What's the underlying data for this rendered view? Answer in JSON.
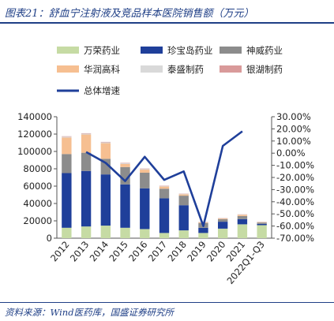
{
  "figure": {
    "title": "图表21：舒血宁注射液及竞品样本医院销售额（万元）",
    "source": "资料来源：Wind医药库，国盛证券研究所"
  },
  "colors": {
    "万荣药业": "#c6dba4",
    "珍宝岛药业": "#1f3f9a",
    "神威药业": "#8c8c8c",
    "华润高科": "#f6bf91",
    "泰盛制药": "#d9d9d9",
    "银湖制药": "#d99a9a",
    "总体增速": "#1f3f9a",
    "header_rule": "#1f3f86"
  },
  "chart_data": {
    "type": "bar",
    "stacked": true,
    "categories": [
      "2012",
      "2013",
      "2014",
      "2015",
      "2016",
      "2017",
      "2018",
      "2019",
      "2020",
      "2021",
      "2022Q1-Q3"
    ],
    "series": [
      {
        "name": "万荣药业",
        "values": [
          12000,
          13500,
          14500,
          12000,
          10500,
          6000,
          9000,
          6000,
          11000,
          16000,
          15000
        ]
      },
      {
        "name": "珍宝岛药业",
        "values": [
          63000,
          64000,
          59000,
          50000,
          47000,
          40000,
          29000,
          6000,
          8000,
          6000,
          1500
        ]
      },
      {
        "name": "神威药业",
        "values": [
          22000,
          21000,
          18000,
          20000,
          18000,
          11000,
          11000,
          5500,
          3000,
          3500,
          1500
        ]
      },
      {
        "name": "华润高科",
        "values": [
          19000,
          21000,
          18000,
          3500,
          3500,
          2500,
          1500,
          800,
          800,
          1500,
          500
        ]
      },
      {
        "name": "泰盛制药",
        "values": [
          1000,
          1000,
          1000,
          800,
          800,
          600,
          600,
          400,
          300,
          300,
          300
        ]
      },
      {
        "name": "银湖制药",
        "values": [
          500,
          500,
          500,
          500,
          500,
          400,
          300,
          200,
          200,
          200,
          200
        ]
      }
    ],
    "line_series": {
      "name": "总体增速",
      "x": [
        "2013",
        "2014",
        "2015",
        "2016",
        "2017",
        "2018",
        "2019",
        "2020",
        "2021"
      ],
      "values": [
        1.0,
        -8.0,
        -23.0,
        -3.0,
        -22.0,
        -15.0,
        -60.0,
        6.0,
        18.0
      ],
      "axis": "right",
      "unit": "%"
    },
    "y_left": {
      "min": 0,
      "max": 140000,
      "ticks": [
        0,
        20000,
        40000,
        60000,
        80000,
        100000,
        120000,
        140000
      ]
    },
    "y_right": {
      "min": -70,
      "max": 30,
      "ticks": [
        30,
        20,
        10,
        0,
        -10,
        -20,
        -30,
        -40,
        -50,
        -60,
        -70
      ],
      "tick_labels": [
        "30.00%",
        "20.00%",
        "10.00%",
        "0.00%",
        "-10.00%",
        "-20.00%",
        "-30.00%",
        "-40.00%",
        "-50.00%",
        "-60.00%",
        "-70.00%"
      ]
    },
    "legend": {
      "position": "top",
      "order": [
        "万荣药业",
        "珍宝岛药业",
        "神威药业",
        "华润高科",
        "泰盛制药",
        "银湖制药",
        "总体增速"
      ]
    },
    "grid": false
  }
}
